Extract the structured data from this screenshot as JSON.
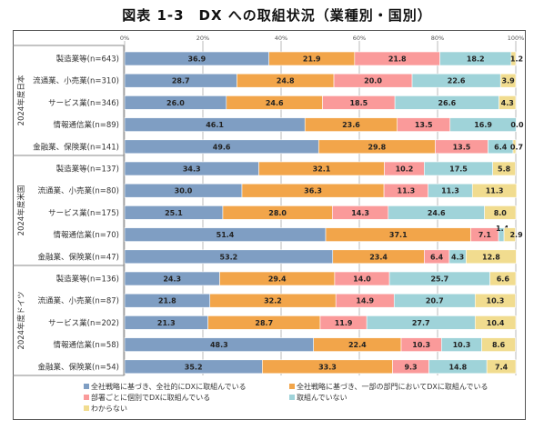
{
  "chart_data": {
    "type": "bar",
    "orientation": "horizontal-stacked-100",
    "title": "図表 1-3　DX への取組状況（業種別・国別）",
    "xlabel": "",
    "ylabel": "",
    "xlim": [
      0,
      100
    ],
    "x_ticks": [
      "0%",
      "20%",
      "40%",
      "60%",
      "80%",
      "100%"
    ],
    "grid": true,
    "legend_position": "bottom",
    "series": [
      {
        "name": "全社戦略に基づき、全社的にDXに取組んでいる",
        "color": "#7f9ec3"
      },
      {
        "name": "全社戦略に基づき、一部の部門においてDXに取組んでいる",
        "color": "#f2a54a"
      },
      {
        "name": "部署ごとに個別でDXに取組んでいる",
        "color": "#fa9a9a"
      },
      {
        "name": "取組んでいない",
        "color": "#9fd3d9"
      },
      {
        "name": "わからない",
        "color": "#f1dc8f"
      }
    ],
    "groups": [
      {
        "label": "2024年度日本",
        "rows": [
          {
            "category": "製造業等(n=643)",
            "values": [
              36.9,
              21.9,
              21.8,
              18.2,
              1.2
            ]
          },
          {
            "category": "流通業、小売業(n=310)",
            "values": [
              28.7,
              24.8,
              20.0,
              22.6,
              3.9
            ]
          },
          {
            "category": "サービス業(n=346)",
            "values": [
              26.0,
              24.6,
              18.5,
              26.6,
              4.3
            ]
          },
          {
            "category": "情報通信業(n=89)",
            "values": [
              46.1,
              23.6,
              13.5,
              16.9,
              0.0
            ]
          },
          {
            "category": "金融業、保険業(n=141)",
            "values": [
              49.6,
              29.8,
              13.5,
              6.4,
              0.7
            ]
          }
        ]
      },
      {
        "label": "2024年度米国",
        "rows": [
          {
            "category": "製造業等(n=137)",
            "values": [
              34.3,
              32.1,
              10.2,
              17.5,
              5.8
            ]
          },
          {
            "category": "流通業、小売業(n=80)",
            "values": [
              30.0,
              36.3,
              11.3,
              11.3,
              11.3
            ]
          },
          {
            "category": "サービス業(n=175)",
            "values": [
              25.1,
              28.0,
              14.3,
              24.6,
              8.0
            ]
          },
          {
            "category": "情報通信業(n=70)",
            "values": [
              51.4,
              37.1,
              7.1,
              1.4,
              2.9
            ]
          },
          {
            "category": "金融業、保険業(n=47)",
            "values": [
              53.2,
              23.4,
              6.4,
              4.3,
              12.8
            ]
          }
        ]
      },
      {
        "label": "2024年度ドイツ",
        "rows": [
          {
            "category": "製造業等(n=136)",
            "values": [
              24.3,
              29.4,
              14.0,
              25.7,
              6.6
            ]
          },
          {
            "category": "流通業、小売業(n=87)",
            "values": [
              21.8,
              32.2,
              14.9,
              20.7,
              10.3
            ]
          },
          {
            "category": "サービス業(n=202)",
            "values": [
              21.3,
              28.7,
              11.9,
              27.7,
              10.4
            ]
          },
          {
            "category": "情報通信業(n=58)",
            "values": [
              48.3,
              22.4,
              10.3,
              10.3,
              8.6
            ]
          },
          {
            "category": "金融業、保険業(n=54)",
            "values": [
              35.2,
              33.3,
              9.3,
              14.8,
              7.4
            ]
          }
        ]
      }
    ]
  }
}
